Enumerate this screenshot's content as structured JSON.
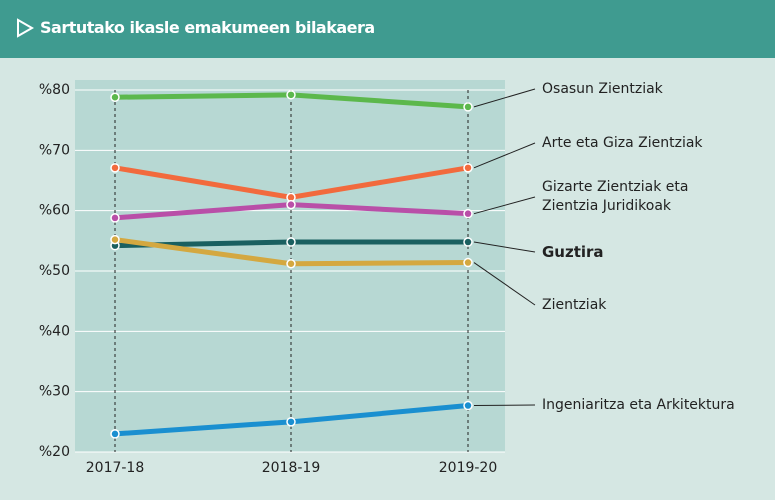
{
  "chart_data": {
    "type": "line",
    "title": "Sartutako ikasle emakumeen bilakaera",
    "categories": [
      "2017-18",
      "2018-19",
      "2019-20"
    ],
    "series": [
      {
        "name": "Osasun Zientziak",
        "color": "#5cb84c",
        "values": [
          78.8,
          79.2,
          77.2
        ]
      },
      {
        "name": "Arte eta Giza Zientziak",
        "color": "#f26a3d",
        "values": [
          67.1,
          62.2,
          67.1
        ]
      },
      {
        "name": "Gizarte Zientziak eta Zientzia Juridikoak",
        "color": "#b94fa8",
        "values": [
          58.8,
          61.0,
          59.5
        ]
      },
      {
        "name": "Guztira",
        "color": "#1a6060",
        "values": [
          54.2,
          54.8,
          54.8
        ]
      },
      {
        "name": "Zientziak",
        "color": "#d4a840",
        "values": [
          55.2,
          51.2,
          51.4
        ]
      },
      {
        "name": "Ingeniaritza eta Arkitektura",
        "color": "#1a8fd0",
        "values": [
          23.0,
          25.0,
          27.7
        ]
      }
    ],
    "ylim": [
      20,
      80
    ],
    "yticks": [
      {
        "value": 20,
        "label": "%20"
      },
      {
        "value": 30,
        "label": "%30"
      },
      {
        "value": 40,
        "label": "%40"
      },
      {
        "value": 50,
        "label": "%50"
      },
      {
        "value": 60,
        "label": "%60"
      },
      {
        "value": 70,
        "label": "%70"
      },
      {
        "value": 80,
        "label": "%80"
      }
    ],
    "grid": true
  }
}
